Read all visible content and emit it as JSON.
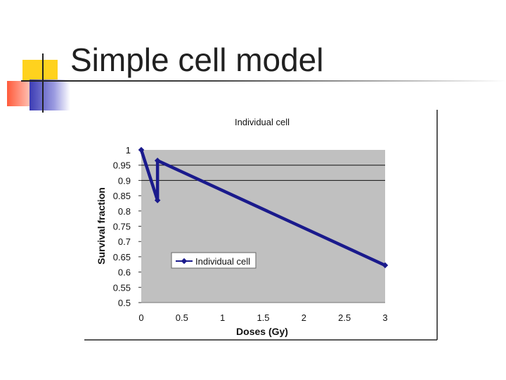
{
  "slide": {
    "title": "Simple cell model"
  },
  "chart_data": {
    "type": "line",
    "title": "Individual cell",
    "xlabel": "Doses (Gy)",
    "ylabel": "Survival fraction",
    "xlim": [
      0,
      3
    ],
    "ylim": [
      0.5,
      1
    ],
    "x_ticks": [
      0,
      0.5,
      1,
      1.5,
      2,
      2.5,
      3
    ],
    "x_tick_labels": [
      "0",
      "0.5",
      "1",
      "1.5",
      "2",
      "2.5",
      "3"
    ],
    "y_ticks": [
      0.5,
      0.55,
      0.6,
      0.65,
      0.7,
      0.75,
      0.8,
      0.85,
      0.9,
      0.95,
      1
    ],
    "y_tick_labels": [
      "0.5",
      "0.55",
      "0.6",
      "0.65",
      "0.7",
      "0.75",
      "0.8",
      "0.85",
      "0.9",
      "0.95",
      "1"
    ],
    "gridlines_y": [
      0.9,
      0.95
    ],
    "legend": {
      "position": "middle-left",
      "label": "Individual cell"
    },
    "series": [
      {
        "name": "Individual cell",
        "color": "#1a1a8c",
        "x": [
          0,
          0.2,
          0.2,
          3
        ],
        "y": [
          1,
          0.835,
          0.965,
          0.622
        ]
      }
    ],
    "plot_background": "#c0c0c0"
  }
}
